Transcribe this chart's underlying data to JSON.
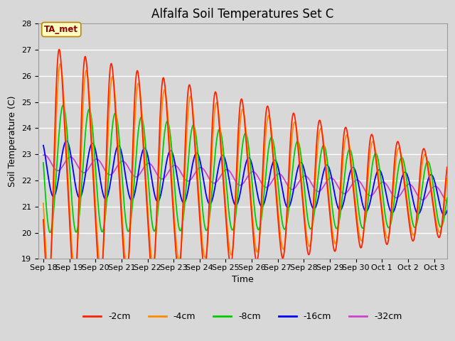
{
  "title": "Alfalfa Soil Temperatures Set C",
  "xlabel": "Time",
  "ylabel": "Soil Temperature (C)",
  "ylim": [
    19.0,
    28.0
  ],
  "yticks": [
    19.0,
    20.0,
    21.0,
    22.0,
    23.0,
    24.0,
    25.0,
    26.0,
    27.0,
    28.0
  ],
  "annotation": "TA_met",
  "colors": {
    "-2cm": "#FF2200",
    "-4cm": "#FF8C00",
    "-8cm": "#00CC00",
    "-16cm": "#0000FF",
    "-32cm": "#CC44CC"
  },
  "n_points": 1500,
  "n_days_total": 15.5,
  "fig_bg": "#D8D8D8",
  "plot_bg": "#D8D8D8",
  "grid_color": "#FFFFFF",
  "title_fontsize": 12,
  "label_fontsize": 9,
  "tick_fontsize": 8
}
